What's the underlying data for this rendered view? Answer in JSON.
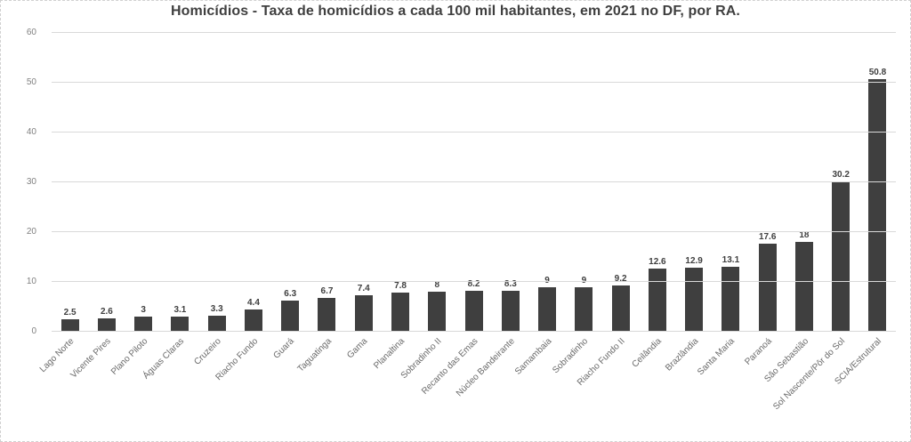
{
  "chart_data": {
    "type": "bar",
    "title": "Homicídios - Taxa de homicídios a cada 100 mil habitantes, em 2021 no DF, por RA.",
    "categories": [
      "Lago Norte",
      "Vicente Pires",
      "Plano Piloto",
      "Águas Claras",
      "Cruzeiro",
      "Riacho Fundo",
      "Guará",
      "Taguatinga",
      "Gama",
      "Planaltina",
      "Sobradinho II",
      "Recanto das Emas",
      "Núcleo Bandeirante",
      "Samambaia",
      "Sobradinho",
      "Riacho Fundo II",
      "Ceilândia",
      "Brazlândia",
      "Santa Maria",
      "Paranoá",
      "São Sebastião",
      "Sol Nascente/Pôr do Sol",
      "SCIA/Estrutural"
    ],
    "values": [
      2.5,
      2.6,
      3,
      3.1,
      3.3,
      4.4,
      6.3,
      6.7,
      7.4,
      7.8,
      8,
      8.2,
      8.3,
      9,
      9,
      9.2,
      12.6,
      12.9,
      13.1,
      17.6,
      18,
      30.2,
      50.8
    ],
    "xlabel": "",
    "ylabel": "",
    "ylim": [
      0,
      60
    ],
    "yticks": [
      0,
      10,
      20,
      30,
      40,
      50,
      60
    ],
    "grid": "horizontal",
    "legend_position": "none",
    "data_labels": true,
    "colors": {
      "bar": "#3f3f3f",
      "gridline": "#d9d9d9",
      "title": "#3f3f3f",
      "ytick_text": "#7f7f7f",
      "xtick_text": "#696969",
      "value_label": "#404040",
      "background": "#ffffff"
    }
  }
}
